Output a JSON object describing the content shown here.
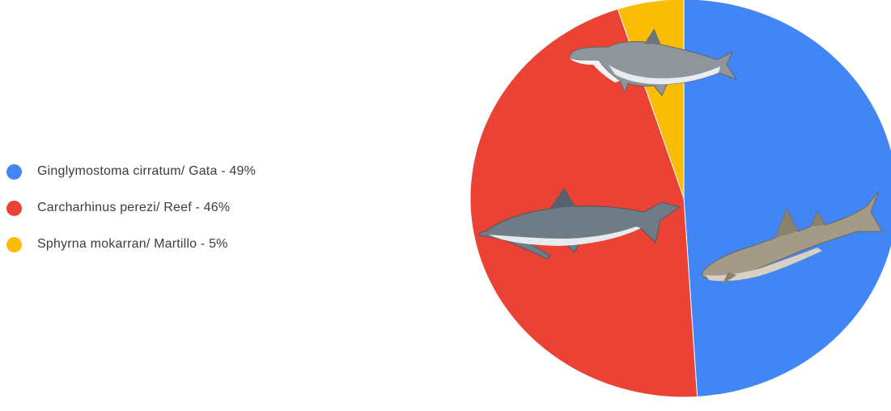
{
  "chart_data": {
    "type": "pie",
    "categories": [
      "Ginglymostoma cirratum/ Gata - 49%",
      "Carcharhinus perezi/ Reef - 46%",
      "Sphyrna mokarran/ Martillo - 5%"
    ],
    "values": [
      49,
      46,
      5
    ],
    "colors": [
      "#4285f4",
      "#ea4335",
      "#fbbc04"
    ],
    "start_angle_deg": 0,
    "direction": "clockwise",
    "legend_position": "left",
    "slice_images": [
      "nurse-shark",
      "caribbean-reef-shark",
      "hammerhead-shark"
    ]
  }
}
